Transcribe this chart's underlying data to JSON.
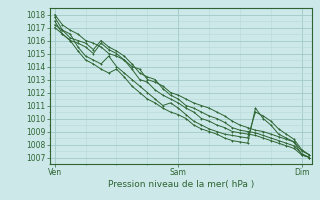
{
  "title": "",
  "xlabel": "Pression niveau de la mer( hPa )",
  "bg_color": "#cce8e8",
  "grid_color_major": "#a0c8c8",
  "grid_color_minor": "#b8dada",
  "line_color": "#2d6432",
  "ylim": [
    1006.5,
    1018.5
  ],
  "yticks": [
    1007,
    1008,
    1009,
    1010,
    1011,
    1012,
    1013,
    1014,
    1015,
    1016,
    1017,
    1018
  ],
  "xtick_labels": [
    "Ven",
    "Sam",
    "Dim"
  ],
  "xtick_positions": [
    0,
    48,
    96
  ],
  "xlim": [
    -2,
    100
  ],
  "series": [
    [
      1018.0,
      1017.2,
      1016.8,
      1016.5,
      1016.0,
      1015.8,
      1015.5,
      1015.0,
      1014.8,
      1014.5,
      1014.0,
      1013.8,
      1013.0,
      1012.8,
      1012.5,
      1012.0,
      1011.8,
      1011.5,
      1011.2,
      1011.0,
      1010.8,
      1010.5,
      1010.2,
      1009.8,
      1009.5,
      1009.3,
      1009.1,
      1009.0,
      1008.8,
      1008.6,
      1008.4,
      1008.2,
      1007.5,
      1007.2
    ],
    [
      1017.8,
      1016.8,
      1016.2,
      1016.0,
      1015.8,
      1015.3,
      1016.0,
      1015.5,
      1015.2,
      1014.8,
      1014.2,
      1013.5,
      1013.2,
      1013.0,
      1012.3,
      1011.8,
      1011.5,
      1011.0,
      1010.8,
      1010.5,
      1010.2,
      1010.0,
      1009.7,
      1009.3,
      1009.1,
      1009.0,
      1008.9,
      1008.7,
      1008.5,
      1008.3,
      1008.1,
      1007.9,
      1007.3,
      1007.0
    ],
    [
      1017.5,
      1016.5,
      1016.0,
      1015.8,
      1015.5,
      1015.0,
      1015.8,
      1015.3,
      1015.0,
      1014.5,
      1013.8,
      1013.0,
      1012.8,
      1012.2,
      1011.8,
      1011.5,
      1011.2,
      1010.8,
      1010.5,
      1010.0,
      1009.8,
      1009.5,
      1009.3,
      1009.0,
      1008.9,
      1008.8,
      1008.7,
      1008.5,
      1008.3,
      1008.1,
      1007.9,
      1007.7,
      1007.2,
      1007.0
    ],
    [
      1017.2,
      1016.8,
      1016.5,
      1015.5,
      1014.8,
      1014.5,
      1014.2,
      1014.8,
      1014.0,
      1013.5,
      1013.0,
      1012.5,
      1012.0,
      1011.5,
      1011.0,
      1011.2,
      1010.8,
      1010.3,
      1009.8,
      1009.5,
      1009.2,
      1009.0,
      1008.8,
      1008.7,
      1008.6,
      1008.5,
      1010.5,
      1010.2,
      1009.8,
      1009.2,
      1008.8,
      1008.4,
      1007.6,
      1007.2
    ],
    [
      1017.0,
      1016.5,
      1016.0,
      1015.2,
      1014.5,
      1014.2,
      1013.8,
      1013.5,
      1013.8,
      1013.2,
      1012.5,
      1012.0,
      1011.5,
      1011.2,
      1010.8,
      1010.5,
      1010.3,
      1010.0,
      1009.5,
      1009.2,
      1009.0,
      1008.8,
      1008.5,
      1008.3,
      1008.2,
      1008.1,
      1010.8,
      1010.0,
      1009.5,
      1008.8,
      1008.5,
      1008.2,
      1007.2,
      1007.0
    ]
  ],
  "series_x": [
    0,
    3,
    6,
    9,
    12,
    15,
    18,
    21,
    24,
    27,
    30,
    33,
    36,
    39,
    42,
    45,
    48,
    51,
    54,
    57,
    60,
    63,
    66,
    69,
    72,
    75,
    78,
    81,
    84,
    87,
    90,
    93,
    96,
    99
  ]
}
